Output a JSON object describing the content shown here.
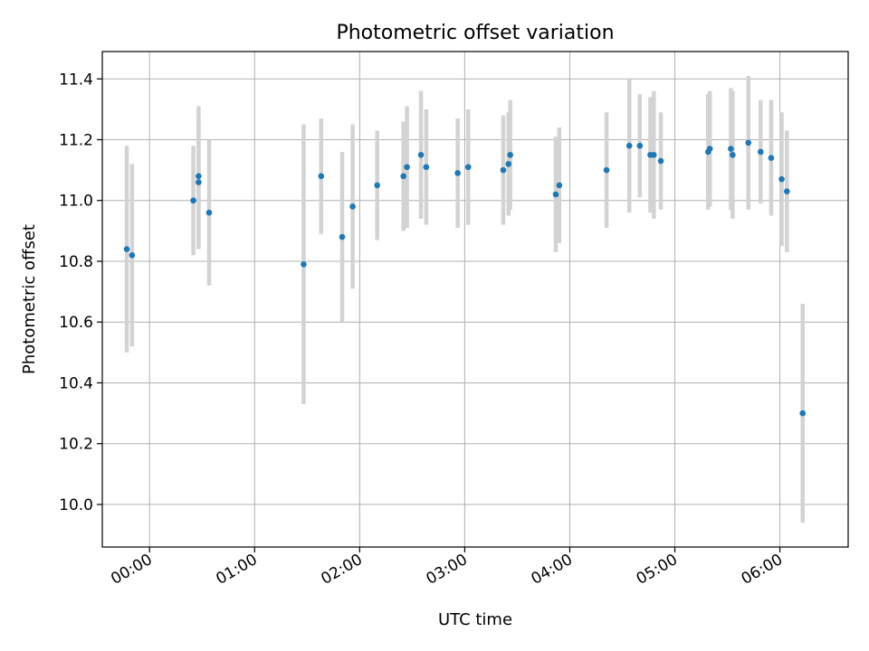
{
  "chart_data": {
    "type": "scatter",
    "title": "Photometric offset variation",
    "xlabel": "UTC time",
    "ylabel": "Photometric offset",
    "x_tick_labels": [
      "00:00",
      "01:00",
      "02:00",
      "03:00",
      "04:00",
      "05:00",
      "06:00"
    ],
    "x_ticks": [
      "00:00",
      "01:00",
      "02:00",
      "03:00",
      "04:00",
      "05:00",
      "06:00"
    ],
    "y_ticks": [
      10.0,
      10.2,
      10.4,
      10.6,
      10.8,
      11.0,
      11.2,
      11.4
    ],
    "y_tick_labels": [
      "10.0",
      "10.2",
      "10.4",
      "10.6",
      "10.8",
      "11.0",
      "11.2",
      "11.4"
    ],
    "xlim": [
      "23:33",
      "06:39"
    ],
    "ylim": [
      9.86,
      11.49
    ],
    "grid": true,
    "point_color": "#1f77b4",
    "errorbar_color": "#d3d3d3",
    "points": [
      {
        "x": "23:47",
        "y": 10.84,
        "err": 0.34
      },
      {
        "x": "23:50",
        "y": 10.82,
        "err": 0.3
      },
      {
        "x": "00:25",
        "y": 11.0,
        "err": 0.18
      },
      {
        "x": "00:28",
        "y": 11.08,
        "err": 0.23
      },
      {
        "x": "00:28",
        "y": 11.06,
        "err": 0.22
      },
      {
        "x": "00:34",
        "y": 10.96,
        "err": 0.24
      },
      {
        "x": "01:28",
        "y": 10.79,
        "err": 0.46
      },
      {
        "x": "01:38",
        "y": 11.08,
        "err": 0.19
      },
      {
        "x": "01:50",
        "y": 10.88,
        "err": 0.28
      },
      {
        "x": "01:56",
        "y": 10.98,
        "err": 0.27
      },
      {
        "x": "02:10",
        "y": 11.05,
        "err": 0.18
      },
      {
        "x": "02:25",
        "y": 11.08,
        "err": 0.18
      },
      {
        "x": "02:27",
        "y": 11.11,
        "err": 0.2
      },
      {
        "x": "02:35",
        "y": 11.15,
        "err": 0.21
      },
      {
        "x": "02:38",
        "y": 11.11,
        "err": 0.19
      },
      {
        "x": "02:56",
        "y": 11.09,
        "err": 0.18
      },
      {
        "x": "03:02",
        "y": 11.11,
        "err": 0.19
      },
      {
        "x": "03:22",
        "y": 11.1,
        "err": 0.18
      },
      {
        "x": "03:25",
        "y": 11.12,
        "err": 0.17
      },
      {
        "x": "03:26",
        "y": 11.15,
        "err": 0.18
      },
      {
        "x": "03:52",
        "y": 11.02,
        "err": 0.19
      },
      {
        "x": "03:54",
        "y": 11.05,
        "err": 0.19
      },
      {
        "x": "04:21",
        "y": 11.1,
        "err": 0.19
      },
      {
        "x": "04:34",
        "y": 11.18,
        "err": 0.22
      },
      {
        "x": "04:40",
        "y": 11.18,
        "err": 0.17
      },
      {
        "x": "04:46",
        "y": 11.15,
        "err": 0.19
      },
      {
        "x": "04:48",
        "y": 11.15,
        "err": 0.21
      },
      {
        "x": "04:52",
        "y": 11.13,
        "err": 0.16
      },
      {
        "x": "05:19",
        "y": 11.16,
        "err": 0.19
      },
      {
        "x": "05:20",
        "y": 11.17,
        "err": 0.19
      },
      {
        "x": "05:32",
        "y": 11.17,
        "err": 0.2
      },
      {
        "x": "05:33",
        "y": 11.15,
        "err": 0.21
      },
      {
        "x": "05:42",
        "y": 11.19,
        "err": 0.22
      },
      {
        "x": "05:49",
        "y": 11.16,
        "err": 0.17
      },
      {
        "x": "05:55",
        "y": 11.14,
        "err": 0.19
      },
      {
        "x": "06:01",
        "y": 11.07,
        "err": 0.22
      },
      {
        "x": "06:04",
        "y": 11.03,
        "err": 0.2
      },
      {
        "x": "06:13",
        "y": 10.3,
        "err": 0.36
      }
    ]
  }
}
